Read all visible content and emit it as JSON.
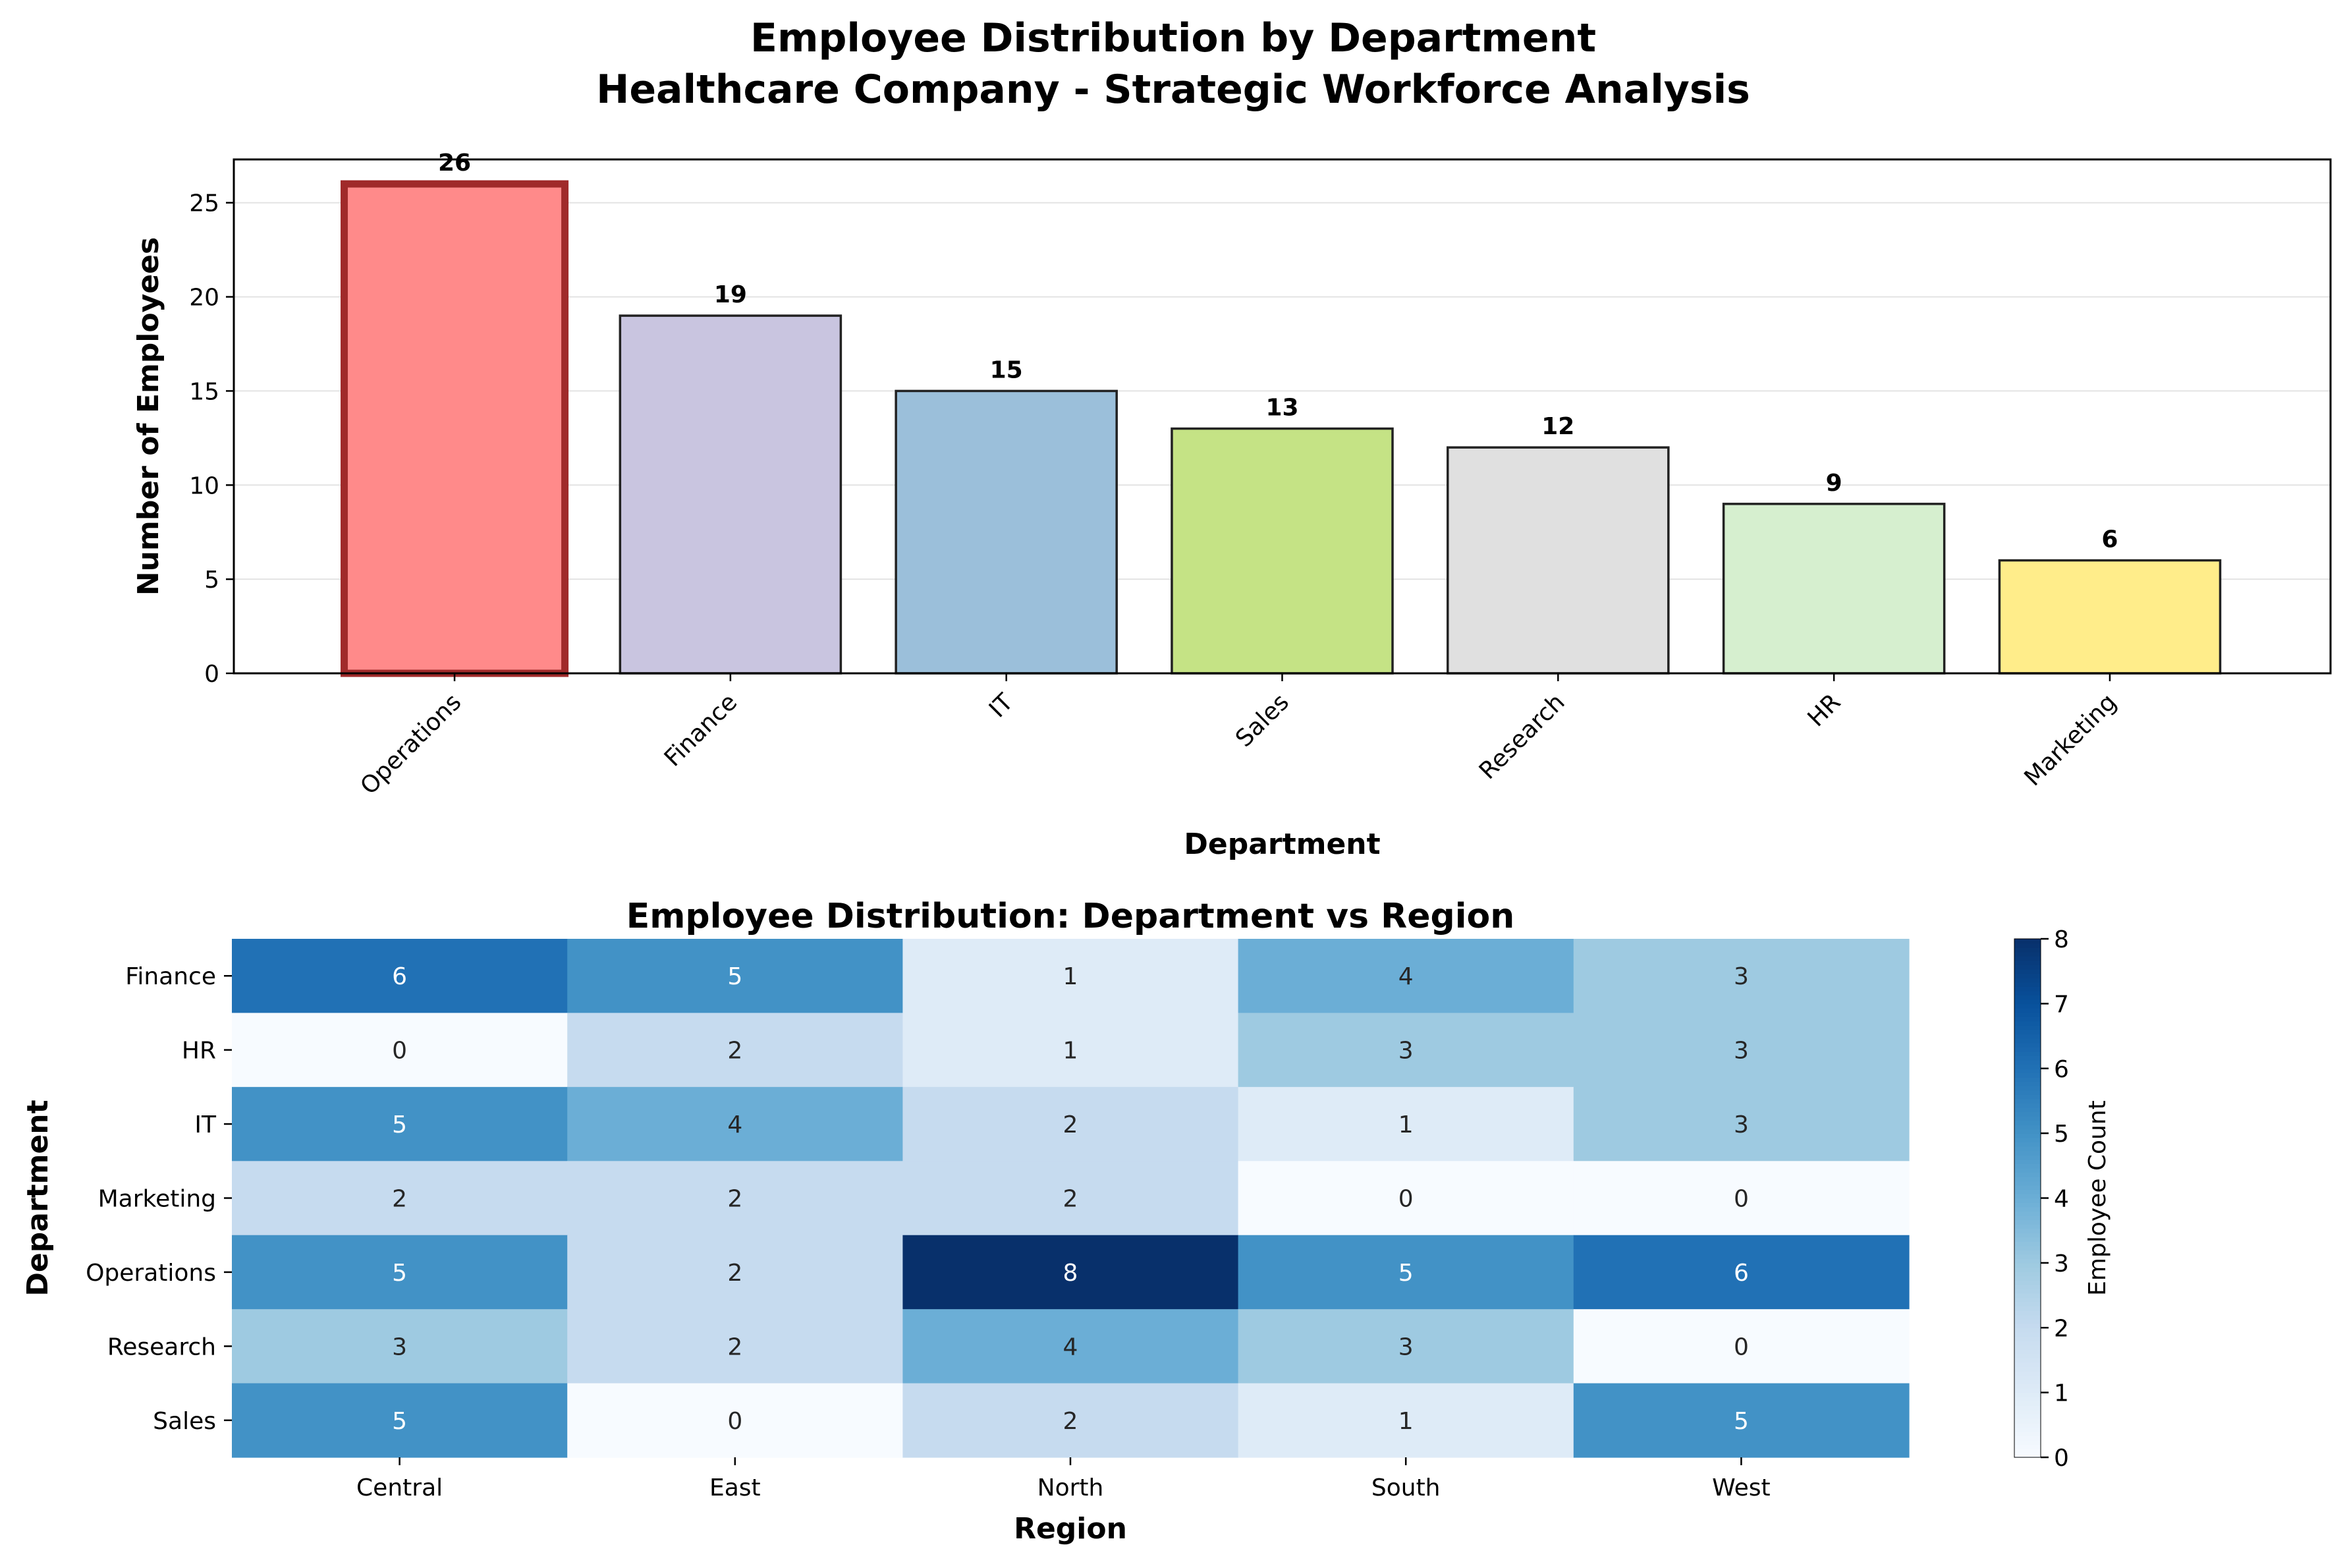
{
  "figure": {
    "title_line1": "Employee Distribution by Department",
    "title_line2": "Healthcare Company - Strategic Workforce Analysis"
  },
  "chart_data": [
    {
      "type": "bar",
      "title": "",
      "xlabel": "Department",
      "ylabel": "Number of Employees",
      "categories": [
        "Operations",
        "Finance",
        "IT",
        "Sales",
        "Research",
        "HR",
        "Marketing"
      ],
      "values": [
        26,
        19,
        15,
        13,
        12,
        9,
        6
      ],
      "colors": [
        "#ff8a8a",
        "#c9c5e0",
        "#9bbfda",
        "#c5e385",
        "#e0e0e0",
        "#d6efcf",
        "#ffed8a"
      ],
      "highlight_edge_color": "#a02a2a",
      "edge_color": "#222222",
      "highlight_index": 0,
      "ylim": [
        0,
        27.3
      ],
      "yticks": [
        0,
        5,
        10,
        15,
        20,
        25
      ],
      "grid": "y"
    },
    {
      "type": "heatmap",
      "title": "Employee Distribution: Department vs Region",
      "xlabel": "Region",
      "ylabel": "Department",
      "columns": [
        "Central",
        "East",
        "North",
        "South",
        "West"
      ],
      "rows": [
        "Finance",
        "HR",
        "IT",
        "Marketing",
        "Operations",
        "Research",
        "Sales"
      ],
      "values": [
        [
          6,
          5,
          1,
          4,
          3
        ],
        [
          0,
          2,
          1,
          3,
          3
        ],
        [
          5,
          4,
          2,
          1,
          3
        ],
        [
          2,
          2,
          2,
          0,
          0
        ],
        [
          5,
          2,
          8,
          5,
          6
        ],
        [
          3,
          2,
          4,
          3,
          0
        ],
        [
          5,
          0,
          2,
          1,
          5
        ]
      ],
      "colormap": "Blues",
      "colorbar_label": "Employee Count",
      "colorbar_ticks": [
        0,
        1,
        2,
        3,
        4,
        5,
        6,
        7,
        8
      ],
      "vmin": 0,
      "vmax": 8
    }
  ]
}
